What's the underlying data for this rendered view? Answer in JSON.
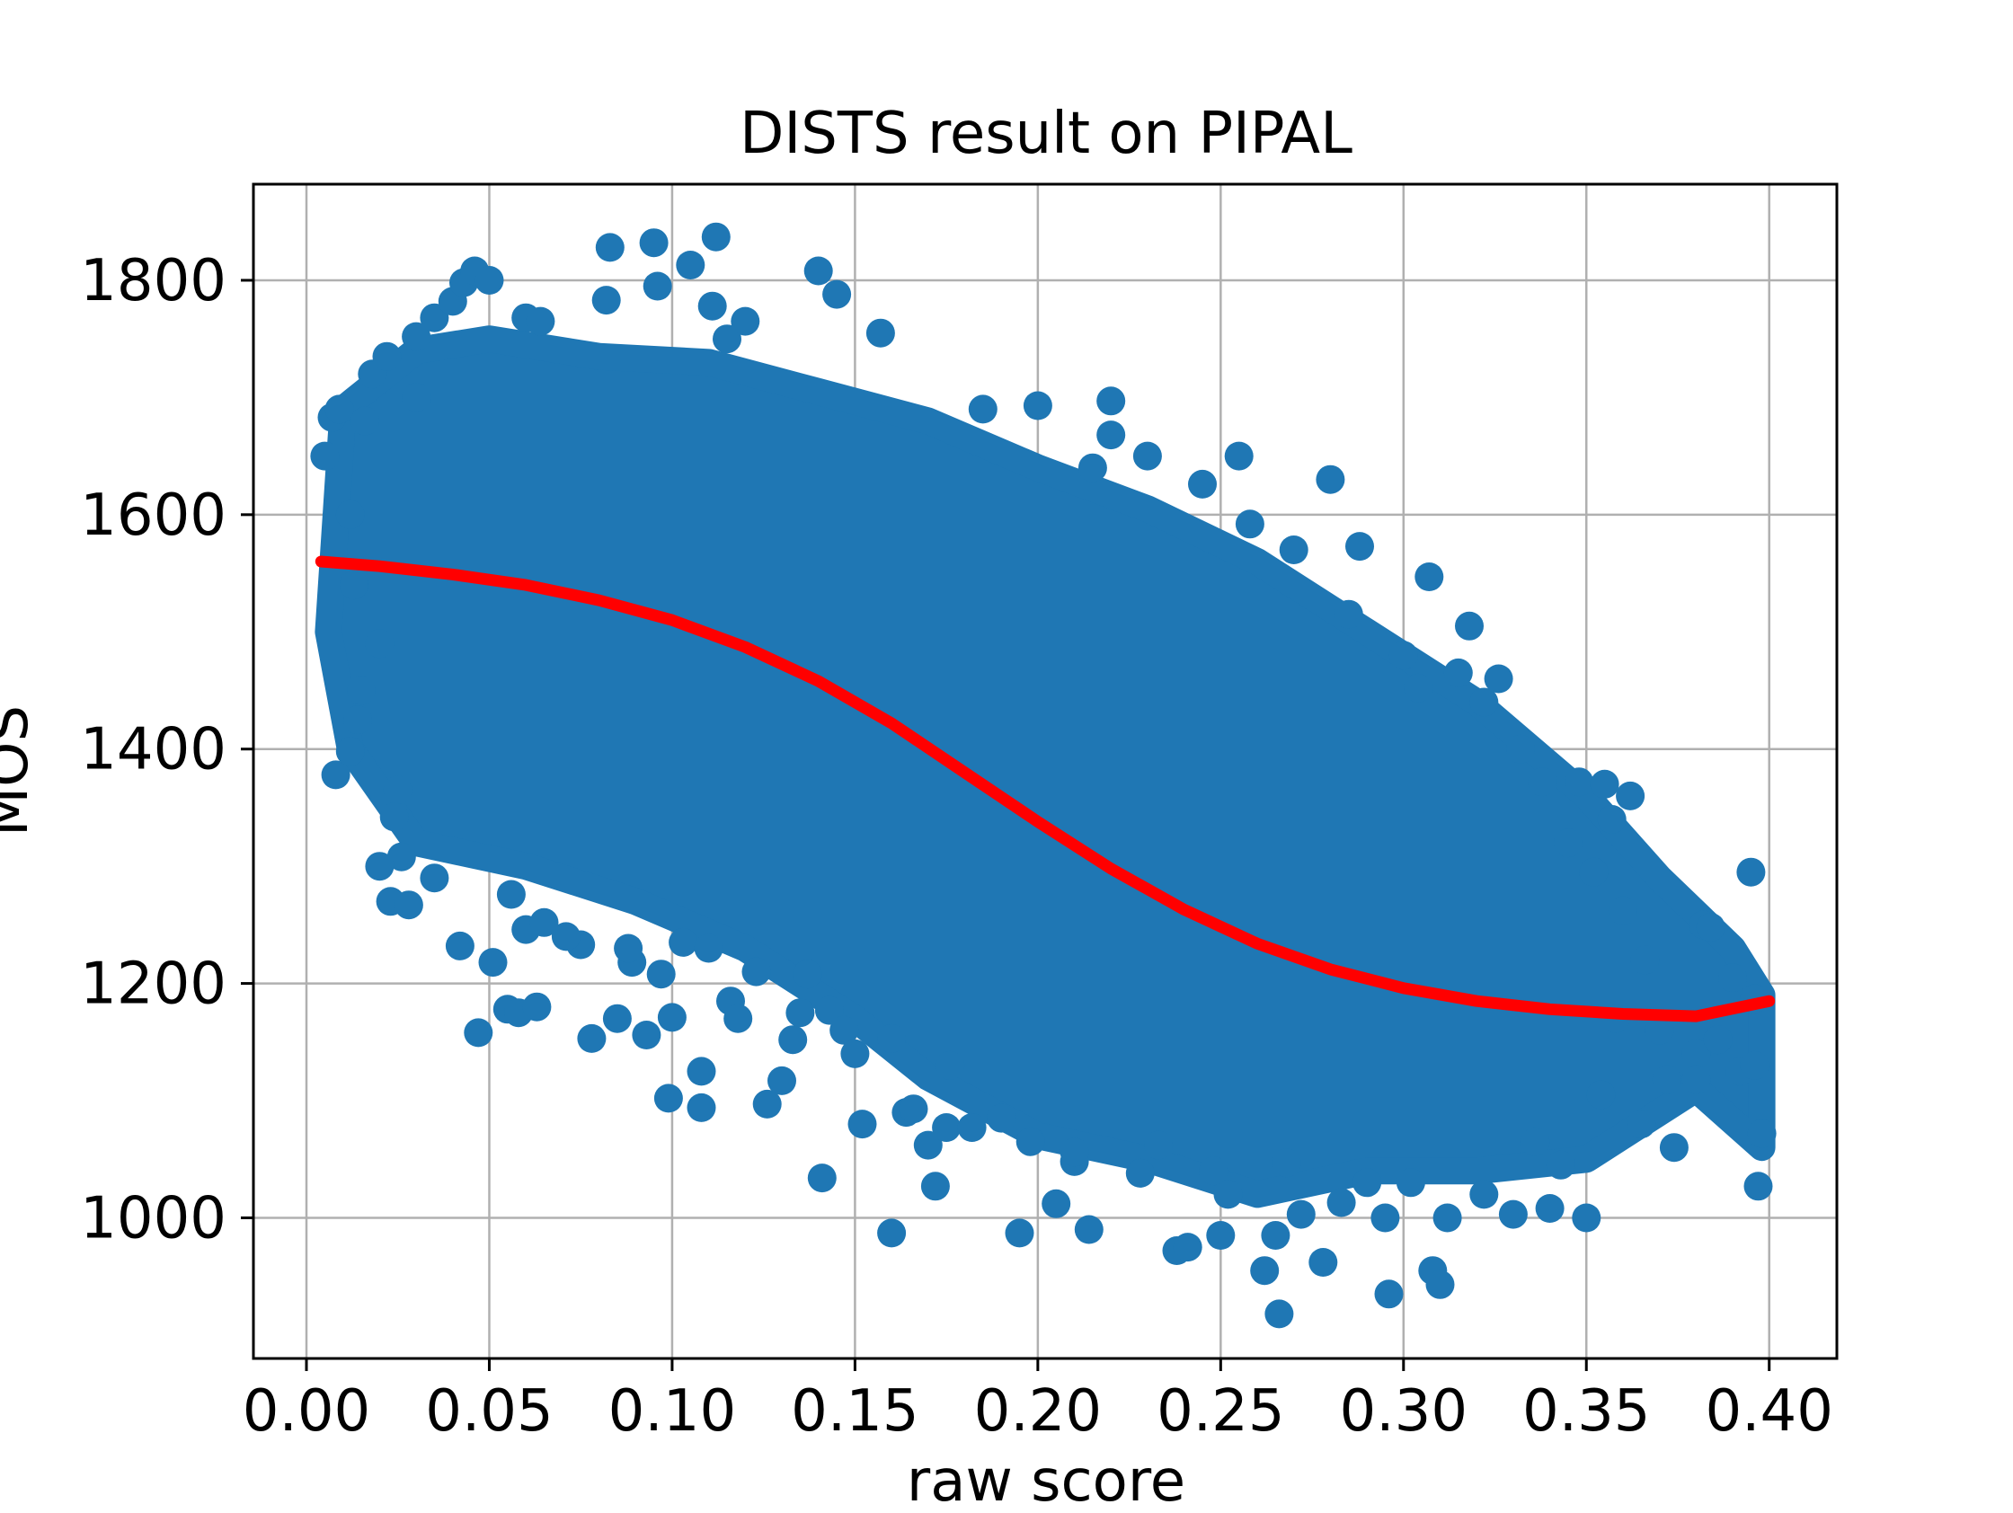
{
  "chart_data": {
    "type": "scatter",
    "title": "DISTS result on PIPAL",
    "xlabel": "raw score",
    "ylabel": "MOS",
    "xlim": [
      -0.0145,
      0.4185
    ],
    "ylim": [
      880,
      1882
    ],
    "x_ticks": [
      {
        "value": 0.0,
        "label": "0.00"
      },
      {
        "value": 0.05,
        "label": "0.05"
      },
      {
        "value": 0.1,
        "label": "0.10"
      },
      {
        "value": 0.15,
        "label": "0.15"
      },
      {
        "value": 0.2,
        "label": "0.20"
      },
      {
        "value": 0.25,
        "label": "0.25"
      },
      {
        "value": 0.3,
        "label": "0.30"
      },
      {
        "value": 0.35,
        "label": "0.35"
      },
      {
        "value": 0.4,
        "label": "0.40"
      }
    ],
    "y_ticks": [
      {
        "value": 1000,
        "label": "1000"
      },
      {
        "value": 1200,
        "label": "1200"
      },
      {
        "value": 1400,
        "label": "1400"
      },
      {
        "value": 1600,
        "label": "1600"
      },
      {
        "value": 1800,
        "label": "1800"
      }
    ],
    "grid": true,
    "series": [
      {
        "kind": "scatter",
        "color": "#1f77b4",
        "note_cloud": "dense point cloud following a decreasing trend",
        "points": [
          [
            0.005,
            1650
          ],
          [
            0.007,
            1683
          ],
          [
            0.009,
            1690
          ],
          [
            0.008,
            1378
          ],
          [
            0.012,
            1398
          ],
          [
            0.018,
            1720
          ],
          [
            0.022,
            1735
          ],
          [
            0.023,
            1270
          ],
          [
            0.028,
            1267
          ],
          [
            0.025,
            1365
          ],
          [
            0.024,
            1342
          ],
          [
            0.026,
            1308
          ],
          [
            0.03,
            1752
          ],
          [
            0.035,
            1768
          ],
          [
            0.04,
            1782
          ],
          [
            0.043,
            1798
          ],
          [
            0.046,
            1808
          ],
          [
            0.05,
            1800
          ],
          [
            0.042,
            1232
          ],
          [
            0.047,
            1158
          ],
          [
            0.051,
            1218
          ],
          [
            0.055,
            1178
          ],
          [
            0.058,
            1175
          ],
          [
            0.063,
            1180
          ],
          [
            0.06,
            1246
          ],
          [
            0.056,
            1276
          ],
          [
            0.06,
            1768
          ],
          [
            0.064,
            1765
          ],
          [
            0.075,
            1233
          ],
          [
            0.078,
            1153
          ],
          [
            0.082,
            1783
          ],
          [
            0.083,
            1828
          ],
          [
            0.085,
            1170
          ],
          [
            0.089,
            1218
          ],
          [
            0.093,
            1156
          ],
          [
            0.095,
            1832
          ],
          [
            0.096,
            1795
          ],
          [
            0.099,
            1102
          ],
          [
            0.1,
            1171
          ],
          [
            0.103,
            1235
          ],
          [
            0.105,
            1813
          ],
          [
            0.108,
            1125
          ],
          [
            0.108,
            1094
          ],
          [
            0.111,
            1778
          ],
          [
            0.112,
            1837
          ],
          [
            0.115,
            1750
          ],
          [
            0.116,
            1185
          ],
          [
            0.118,
            1170
          ],
          [
            0.12,
            1765
          ],
          [
            0.126,
            1097
          ],
          [
            0.13,
            1117
          ],
          [
            0.133,
            1152
          ],
          [
            0.135,
            1175
          ],
          [
            0.14,
            1808
          ],
          [
            0.141,
            1034
          ],
          [
            0.143,
            1177
          ],
          [
            0.145,
            1788
          ],
          [
            0.147,
            1160
          ],
          [
            0.152,
            1080
          ],
          [
            0.157,
            1755
          ],
          [
            0.16,
            987
          ],
          [
            0.164,
            1090
          ],
          [
            0.166,
            1093
          ],
          [
            0.17,
            1062
          ],
          [
            0.172,
            1027
          ],
          [
            0.175,
            1077
          ],
          [
            0.182,
            1077
          ],
          [
            0.185,
            1690
          ],
          [
            0.195,
            987
          ],
          [
            0.198,
            1065
          ],
          [
            0.2,
            1693
          ],
          [
            0.205,
            1012
          ],
          [
            0.21,
            1048
          ],
          [
            0.215,
            1640
          ],
          [
            0.214,
            990
          ],
          [
            0.22,
            1697
          ],
          [
            0.22,
            1668
          ],
          [
            0.23,
            1650
          ],
          [
            0.233,
            1062
          ],
          [
            0.238,
            972
          ],
          [
            0.241,
            975
          ],
          [
            0.245,
            1626
          ],
          [
            0.25,
            985
          ],
          [
            0.252,
            1020
          ],
          [
            0.255,
            1650
          ],
          [
            0.258,
            1592
          ],
          [
            0.262,
            955
          ],
          [
            0.265,
            985
          ],
          [
            0.266,
            918
          ],
          [
            0.27,
            1570
          ],
          [
            0.272,
            1003
          ],
          [
            0.278,
            962
          ],
          [
            0.28,
            1630
          ],
          [
            0.285,
            1515
          ],
          [
            0.288,
            1573
          ],
          [
            0.29,
            1030
          ],
          [
            0.295,
            1000
          ],
          [
            0.296,
            935
          ],
          [
            0.3,
            1480
          ],
          [
            0.304,
            1452
          ],
          [
            0.307,
            1547
          ],
          [
            0.308,
            955
          ],
          [
            0.31,
            943
          ],
          [
            0.312,
            1000
          ],
          [
            0.315,
            1465
          ],
          [
            0.318,
            1505
          ],
          [
            0.322,
            1440
          ],
          [
            0.326,
            1460
          ],
          [
            0.33,
            1003
          ],
          [
            0.332,
            1400
          ],
          [
            0.338,
            1372
          ],
          [
            0.34,
            1008
          ],
          [
            0.345,
            1320
          ],
          [
            0.348,
            1372
          ],
          [
            0.35,
            1000
          ],
          [
            0.352,
            1295
          ],
          [
            0.355,
            1370
          ],
          [
            0.357,
            1340
          ],
          [
            0.36,
            1262
          ],
          [
            0.362,
            1360
          ],
          [
            0.366,
            1220
          ],
          [
            0.37,
            1160
          ],
          [
            0.374,
            1060
          ],
          [
            0.38,
            1140
          ],
          [
            0.382,
            1250
          ],
          [
            0.384,
            1248
          ],
          [
            0.386,
            1152
          ],
          [
            0.39,
            1205
          ],
          [
            0.392,
            1125
          ],
          [
            0.395,
            1295
          ],
          [
            0.396,
            1130
          ],
          [
            0.397,
            1027
          ],
          [
            0.398,
            1072
          ],
          [
            0.396,
            1187
          ],
          [
            0.38,
            1118
          ],
          [
            0.372,
            1118
          ],
          [
            0.365,
            1080
          ],
          [
            0.358,
            1170
          ],
          [
            0.354,
            1105
          ],
          [
            0.343,
            1045
          ],
          [
            0.336,
            1065
          ],
          [
            0.322,
            1020
          ],
          [
            0.302,
            1030
          ],
          [
            0.283,
            1013
          ],
          [
            0.268,
            1047
          ],
          [
            0.248,
            1040
          ],
          [
            0.228,
            1038
          ],
          [
            0.21,
            1056
          ],
          [
            0.19,
            1085
          ],
          [
            0.176,
            1130
          ],
          [
            0.16,
            1153
          ],
          [
            0.15,
            1140
          ],
          [
            0.137,
            1208
          ],
          [
            0.123,
            1210
          ],
          [
            0.11,
            1230
          ],
          [
            0.097,
            1208
          ],
          [
            0.088,
            1230
          ],
          [
            0.071,
            1240
          ],
          [
            0.065,
            1252
          ],
          [
            0.035,
            1290
          ],
          [
            0.02,
            1300
          ],
          [
            0.015,
            1450
          ],
          [
            0.012,
            1600
          ],
          [
            0.016,
            1680
          ],
          [
            0.013,
            1540
          ],
          [
            0.02,
            1490
          ],
          [
            0.014,
            1425
          ],
          [
            0.03,
            1700
          ]
        ]
      },
      {
        "kind": "line",
        "color": "#ff0000",
        "note": "fitted logistic curve",
        "points": [
          [
            0.004,
            1560
          ],
          [
            0.02,
            1556
          ],
          [
            0.04,
            1549
          ],
          [
            0.06,
            1540
          ],
          [
            0.08,
            1527
          ],
          [
            0.1,
            1510
          ],
          [
            0.12,
            1487
          ],
          [
            0.14,
            1458
          ],
          [
            0.16,
            1422
          ],
          [
            0.18,
            1380
          ],
          [
            0.2,
            1338
          ],
          [
            0.22,
            1298
          ],
          [
            0.24,
            1263
          ],
          [
            0.26,
            1234
          ],
          [
            0.28,
            1212
          ],
          [
            0.3,
            1196
          ],
          [
            0.32,
            1185
          ],
          [
            0.34,
            1178
          ],
          [
            0.36,
            1174
          ],
          [
            0.38,
            1172
          ],
          [
            0.4,
            1185
          ]
        ]
      }
    ]
  }
}
